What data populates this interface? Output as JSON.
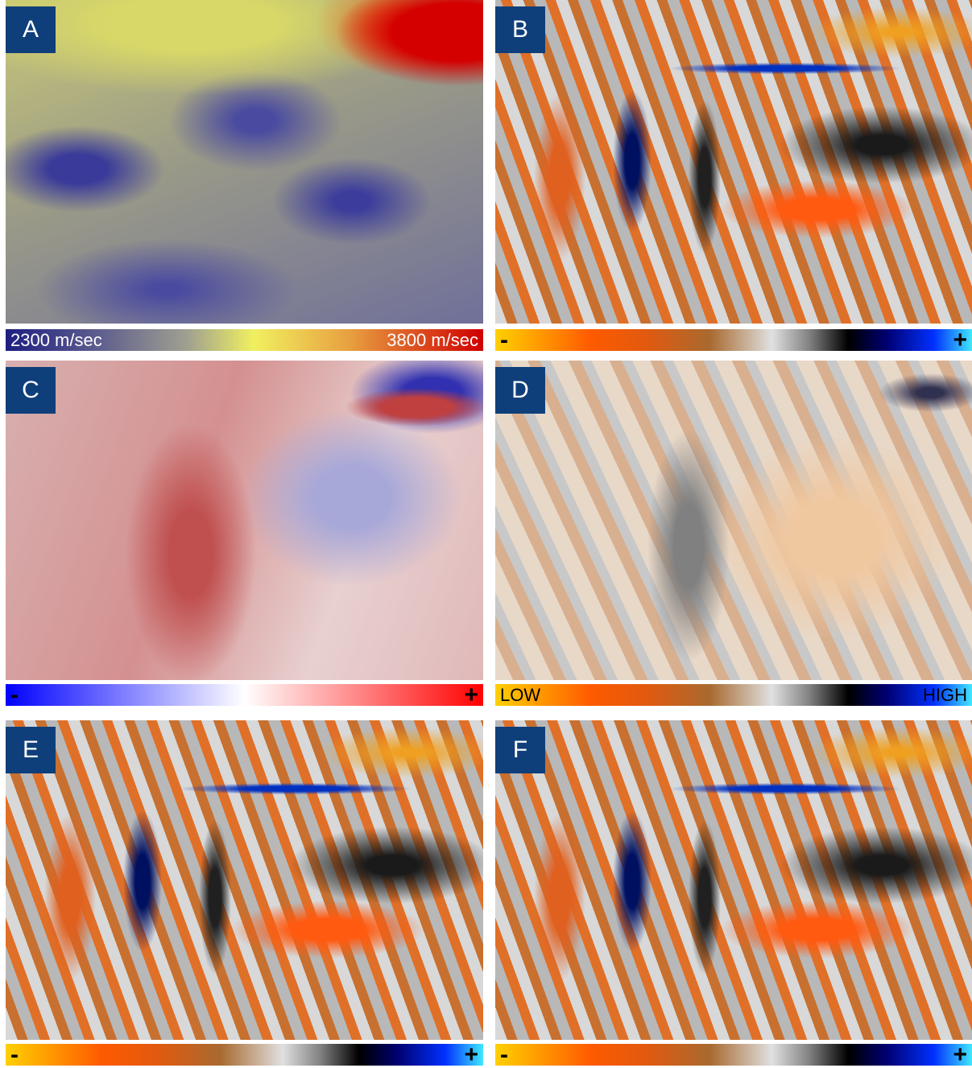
{
  "panels": [
    {
      "label": "A",
      "colorbar": {
        "left": "2300 m/sec",
        "right": "3800 m/sec"
      }
    },
    {
      "label": "B",
      "colorbar": {
        "left": "-",
        "right": "+"
      }
    },
    {
      "label": "C",
      "colorbar": {
        "left": "-",
        "right": "+"
      }
    },
    {
      "label": "D",
      "colorbar": {
        "left": "LOW",
        "right": "HIGH"
      }
    },
    {
      "label": "E",
      "colorbar": {
        "left": "-",
        "right": "+"
      }
    },
    {
      "label": "F",
      "colorbar": {
        "left": "-",
        "right": "+"
      }
    }
  ]
}
